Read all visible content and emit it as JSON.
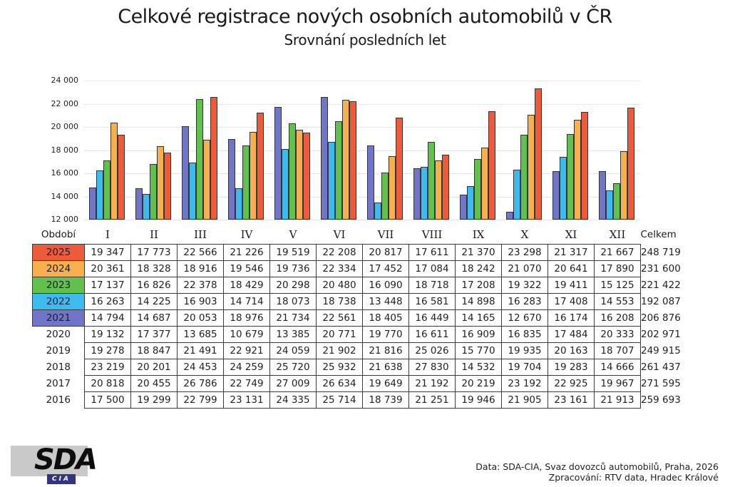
{
  "title": "Celkové registrace nových osobních automobilů v ČR",
  "subtitle": "Srovnání posledních let",
  "logo": {
    "main": "SDA",
    "sub": "CIA"
  },
  "footer": {
    "line1": "Data: SDA-CIA, Svaz dovozců automobilů, Praha, 2026",
    "line2": "Zpracování: RTV data, Hradec Králové"
  },
  "table": {
    "period_label": "Období",
    "total_label": "Celkem",
    "months": [
      "I",
      "II",
      "III",
      "IV",
      "V",
      "VI",
      "VII",
      "VIII",
      "IX",
      "X",
      "XI",
      "XII"
    ],
    "rows": [
      {
        "year": "2025",
        "color": "#ee5b3b",
        "values": [
          19347,
          17773,
          22566,
          21226,
          19519,
          22208,
          20817,
          17611,
          21370,
          23298,
          21317,
          21667
        ],
        "total": 248719
      },
      {
        "year": "2024",
        "color": "#f8b04f",
        "values": [
          20361,
          18328,
          18916,
          19546,
          19736,
          22334,
          17452,
          17084,
          18242,
          21070,
          20641,
          17890
        ],
        "total": 231600
      },
      {
        "year": "2023",
        "color": "#62c04d",
        "values": [
          17137,
          16826,
          22378,
          18429,
          20298,
          20480,
          16090,
          18718,
          17208,
          19322,
          19411,
          15125
        ],
        "total": 221422
      },
      {
        "year": "2022",
        "color": "#3dbbee",
        "values": [
          16263,
          14225,
          16903,
          14714,
          18073,
          18738,
          13448,
          16581,
          14898,
          16283,
          17408,
          14553
        ],
        "total": 192087
      },
      {
        "year": "2021",
        "color": "#7175c7",
        "values": [
          14794,
          14687,
          20053,
          18976,
          21734,
          22561,
          18405,
          16449,
          14165,
          12670,
          16174,
          16208
        ],
        "total": 206876
      },
      {
        "year": "2020",
        "color": null,
        "values": [
          19132,
          17377,
          13685,
          10679,
          13385,
          20771,
          19770,
          16611,
          16909,
          16835,
          17484,
          20333
        ],
        "total": 202971
      },
      {
        "year": "2019",
        "color": null,
        "values": [
          19278,
          18847,
          21491,
          22921,
          24059,
          21902,
          21816,
          25026,
          15770,
          19935,
          20163,
          18707
        ],
        "total": 249915
      },
      {
        "year": "2018",
        "color": null,
        "values": [
          23219,
          20201,
          24453,
          24259,
          25720,
          25932,
          21638,
          27830,
          14532,
          19704,
          19283,
          14666
        ],
        "total": 261437
      },
      {
        "year": "2017",
        "color": null,
        "values": [
          20818,
          20455,
          26786,
          22749,
          27009,
          26634,
          19649,
          21192,
          20219,
          23192,
          22925,
          19967
        ],
        "total": 271595
      },
      {
        "year": "2016",
        "color": null,
        "values": [
          17500,
          19299,
          22799,
          23131,
          24335,
          25714,
          18739,
          21251,
          19946,
          21905,
          23161,
          21913
        ],
        "total": 259693
      }
    ]
  },
  "chart_data": {
    "type": "bar",
    "title": "Celkové registrace nových osobních automobilů v ČR",
    "subtitle": "Srovnání posledních let",
    "categories": [
      "I",
      "II",
      "III",
      "IV",
      "V",
      "VI",
      "VII",
      "VIII",
      "IX",
      "X",
      "XI",
      "XII"
    ],
    "series": [
      {
        "name": "2021",
        "color": "#7175c7",
        "values": [
          14794,
          14687,
          20053,
          18976,
          21734,
          22561,
          18405,
          16449,
          14165,
          12670,
          16174,
          16208
        ]
      },
      {
        "name": "2022",
        "color": "#3dbbee",
        "values": [
          16263,
          14225,
          16903,
          14714,
          18073,
          18738,
          13448,
          16581,
          14898,
          16283,
          17408,
          14553
        ]
      },
      {
        "name": "2023",
        "color": "#62c04d",
        "values": [
          17137,
          16826,
          22378,
          18429,
          20298,
          20480,
          16090,
          18718,
          17208,
          19322,
          19411,
          15125
        ]
      },
      {
        "name": "2024",
        "color": "#f8b04f",
        "values": [
          20361,
          18328,
          18916,
          19546,
          19736,
          22334,
          17452,
          17084,
          18242,
          21070,
          20641,
          17890
        ]
      },
      {
        "name": "2025",
        "color": "#ee5b3b",
        "values": [
          19347,
          17773,
          22566,
          21226,
          19519,
          22208,
          20817,
          17611,
          21370,
          23298,
          21317,
          21667
        ]
      }
    ],
    "ylim": [
      12000,
      24000
    ],
    "yticks": [
      "24 000",
      "22 000",
      "20 000",
      "18 000",
      "16 000",
      "14 000",
      "12 000"
    ],
    "xlabel": "Období",
    "ylabel": "",
    "grid": true,
    "legend_position": "table-rows"
  }
}
